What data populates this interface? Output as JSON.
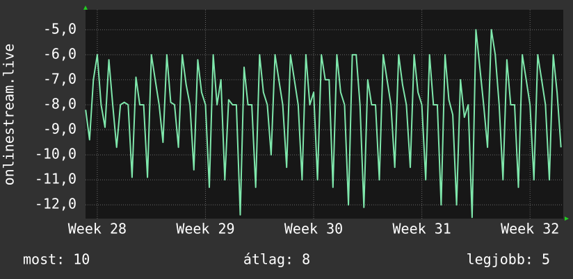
{
  "chart_data": {
    "type": "line",
    "y_label": "onlinestream.live",
    "x": [
      -0.75,
      -0.5,
      -0.25,
      0,
      0.25,
      0.5,
      0.75,
      1,
      1.25,
      1.5,
      1.75,
      2,
      2.25,
      2.5,
      2.75,
      3,
      3.25,
      3.5,
      3.75,
      4,
      4.25,
      4.5,
      4.75,
      5,
      5.25,
      5.5,
      5.75,
      6,
      6.25,
      6.5,
      6.75,
      7,
      7.25,
      7.5,
      7.75,
      8,
      8.25,
      8.5,
      8.75,
      9,
      9.25,
      9.5,
      9.75,
      10,
      10.25,
      10.5,
      10.75,
      11,
      11.25,
      11.5,
      11.75,
      12,
      12.25,
      12.5,
      12.75,
      13,
      13.25,
      13.5,
      13.75,
      14,
      14.25,
      14.5,
      14.75,
      15,
      15.25,
      15.5,
      15.75,
      16,
      16.25,
      16.5,
      16.75,
      17,
      17.25,
      17.5,
      17.75,
      18,
      18.25,
      18.5,
      18.75,
      19,
      19.25,
      19.5,
      19.75,
      20,
      20.25,
      20.5,
      20.75,
      21,
      21.25,
      21.5,
      21.75,
      22,
      22.25,
      22.5,
      22.75,
      23,
      23.25,
      23.5,
      23.75,
      24,
      24.25,
      24.5,
      24.75,
      25,
      25.25,
      25.5,
      25.75,
      26,
      26.25,
      26.5,
      26.75,
      27,
      27.25,
      27.5,
      27.75,
      28,
      28.25,
      28.5,
      28.75,
      29,
      29.25,
      29.5,
      29.75,
      30
    ],
    "values": [
      -8.2,
      -9.4,
      -7.0,
      -6.0,
      -8.0,
      -8.9,
      -6.2,
      -8.0,
      -9.7,
      -8.0,
      -7.9,
      -8.0,
      -10.9,
      -6.9,
      -8.0,
      -8.0,
      -10.9,
      -6.0,
      -7.0,
      -8.0,
      -9.5,
      -6.0,
      -7.9,
      -8.0,
      -9.7,
      -6.0,
      -7.2,
      -8.0,
      -10.6,
      -6.2,
      -7.5,
      -8.0,
      -11.3,
      -6.0,
      -8.0,
      -7.0,
      -11.0,
      -7.8,
      -8.0,
      -8.0,
      -12.4,
      -6.5,
      -8.0,
      -8.0,
      -11.3,
      -6.0,
      -7.5,
      -8.0,
      -10.0,
      -6.0,
      -7.0,
      -8.0,
      -10.5,
      -6.0,
      -7.0,
      -8.0,
      -11.0,
      -6.0,
      -8.0,
      -7.5,
      -11.0,
      -6.0,
      -7.0,
      -7.0,
      -11.3,
      -6.0,
      -7.5,
      -8.0,
      -12.0,
      -6.0,
      -6.0,
      -8.0,
      -12.1,
      -7.0,
      -8.0,
      -8.0,
      -11.0,
      -6.0,
      -7.0,
      -8.0,
      -10.5,
      -6.0,
      -7.2,
      -8.0,
      -10.5,
      -6.0,
      -7.5,
      -8.0,
      -11.0,
      -6.0,
      -8.0,
      -8.0,
      -12.0,
      -6.0,
      -7.8,
      -8.4,
      -12.0,
      -7.0,
      -8.5,
      -8.0,
      -12.5,
      -5.0,
      -6.5,
      -8.0,
      -9.7,
      -5.0,
      -6.0,
      -8.0,
      -11.0,
      -6.2,
      -8.0,
      -8.0,
      -11.3,
      -6.0,
      -7.0,
      -8.0,
      -11.0,
      -6.0,
      -7.0,
      -8.0,
      -11.0,
      -6.0,
      -7.5,
      -9.7
    ],
    "color": "#7fe8ac",
    "xlim": [
      -0.76,
      30.15
    ],
    "xticks": [
      {
        "value": 0,
        "label": "Week 28"
      },
      {
        "value": 7,
        "label": "Week 29"
      },
      {
        "value": 14,
        "label": "Week 30"
      },
      {
        "value": 21,
        "label": "Week 31"
      },
      {
        "value": 28,
        "label": "Week 32"
      }
    ],
    "ylim": [
      -12.55,
      -4.2
    ],
    "yticks": [
      {
        "value": -5,
        "label": "-5,0"
      },
      {
        "value": -6,
        "label": "-6,0"
      },
      {
        "value": -7,
        "label": "-7,0"
      },
      {
        "value": -8,
        "label": "-8,0"
      },
      {
        "value": -9,
        "label": "-9,0"
      },
      {
        "value": -10,
        "label": "-10,0"
      },
      {
        "value": -11,
        "label": "-11,0"
      },
      {
        "value": -12,
        "label": "-12,0"
      }
    ],
    "grid": true,
    "footer": [
      "most: 10",
      "átlag: 8",
      "legjobb: 5"
    ]
  }
}
